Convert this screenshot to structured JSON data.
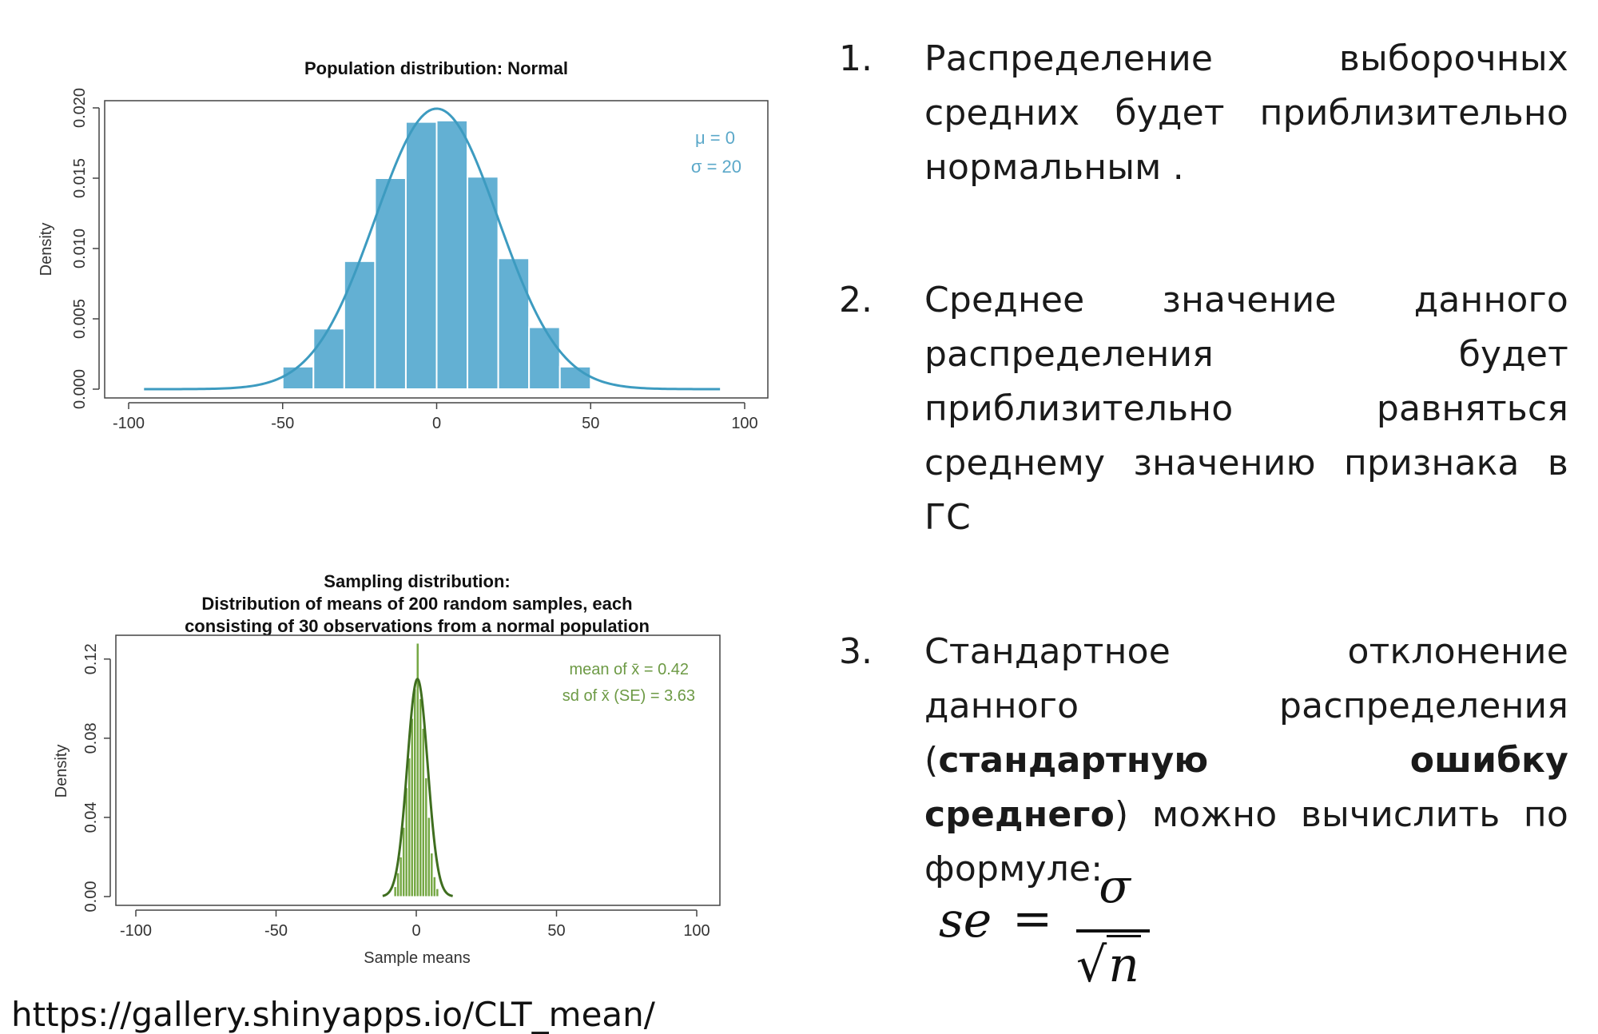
{
  "slide": {
    "url": "https://gallery.shinyapps.io/CLT_mean/",
    "points": [
      {
        "number": "1.",
        "text": "Распределение выборочных средних будет приблизительно нормальным ."
      },
      {
        "number": "2.",
        "text": "Среднее значение данного распределения будет приблизительно равняться среднему значению признака в ГС"
      },
      {
        "number": "3.",
        "text_before": "Стандартное отклонение данного распределения (",
        "text_bold": "стандартную ошибку среднего",
        "text_after": ") можно вычислить по формуле:"
      }
    ],
    "formula": {
      "lhs": "se",
      "equals": "=",
      "numerator": "σ",
      "denominator_root": "√",
      "denominator_var": "n"
    }
  },
  "colors": {
    "population_bars": "#63b0d3",
    "population_curve": "#3d9bc0",
    "sampling_bars": "#76a845",
    "sampling_curve": "#3f6e1f",
    "text": "#1a1a1a"
  },
  "chart_data": [
    {
      "type": "bar",
      "title": "Population distribution: Normal",
      "xlabel": "",
      "ylabel": "Density",
      "xlim": [
        -100,
        100
      ],
      "ylim": [
        0,
        0.02
      ],
      "x_ticks": [
        "-100",
        "-50",
        "0",
        "50",
        "100"
      ],
      "y_ticks": [
        "0.000",
        "0.005",
        "0.010",
        "0.015",
        "0.020"
      ],
      "bins": [
        {
          "from": -50,
          "to": -40,
          "value": 0.0016
        },
        {
          "from": -40,
          "to": -30,
          "value": 0.0043
        },
        {
          "from": -30,
          "to": -20,
          "value": 0.0091
        },
        {
          "from": -20,
          "to": -10,
          "value": 0.015
        },
        {
          "from": -10,
          "to": 0,
          "value": 0.019
        },
        {
          "from": 0,
          "to": 10,
          "value": 0.0191
        },
        {
          "from": 10,
          "to": 20,
          "value": 0.0151
        },
        {
          "from": 20,
          "to": 30,
          "value": 0.0093
        },
        {
          "from": 30,
          "to": 40,
          "value": 0.0044
        },
        {
          "from": 40,
          "to": 50,
          "value": 0.0016
        }
      ],
      "curve": {
        "mean": 0,
        "sd": 20,
        "x_range": [
          -95,
          92
        ]
      },
      "annotations": [
        "μ = 0",
        "σ = 20"
      ]
    },
    {
      "type": "bar",
      "title": "Sampling distribution:",
      "subtitle_lines": [
        "Distribution of means of 200 random samples, each",
        "consisting of 30 observations from a normal population"
      ],
      "xlabel": "Sample means",
      "ylabel": "Density",
      "xlim": [
        -100,
        100
      ],
      "ylim": [
        0,
        0.13
      ],
      "x_ticks": [
        "-100",
        "-50",
        "0",
        "50",
        "100"
      ],
      "y_ticks": [
        "0.00",
        "0.04",
        "0.08",
        "0.12"
      ],
      "bins": [
        {
          "from": -8,
          "to": -7,
          "value": 0.005
        },
        {
          "from": -7,
          "to": -6,
          "value": 0.012
        },
        {
          "from": -6,
          "to": -5,
          "value": 0.02
        },
        {
          "from": -5,
          "to": -4,
          "value": 0.035
        },
        {
          "from": -4,
          "to": -3,
          "value": 0.055
        },
        {
          "from": -3,
          "to": -2,
          "value": 0.07
        },
        {
          "from": -2,
          "to": -1,
          "value": 0.09
        },
        {
          "from": -1,
          "to": 0,
          "value": 0.105
        },
        {
          "from": 0,
          "to": 1,
          "value": 0.128
        },
        {
          "from": 1,
          "to": 2,
          "value": 0.1
        },
        {
          "from": 2,
          "to": 3,
          "value": 0.085
        },
        {
          "from": 3,
          "to": 4,
          "value": 0.06
        },
        {
          "from": 4,
          "to": 5,
          "value": 0.04
        },
        {
          "from": 5,
          "to": 6,
          "value": 0.022
        },
        {
          "from": 6,
          "to": 7,
          "value": 0.01
        },
        {
          "from": 7,
          "to": 8,
          "value": 0.004
        }
      ],
      "curve": {
        "mean": 0.42,
        "sd": 3.63,
        "x_range": [
          -12,
          13
        ]
      },
      "annotations": [
        "mean of  x̄ = 0.42",
        "sd of  x̄ (SE) = 3.63"
      ]
    }
  ]
}
